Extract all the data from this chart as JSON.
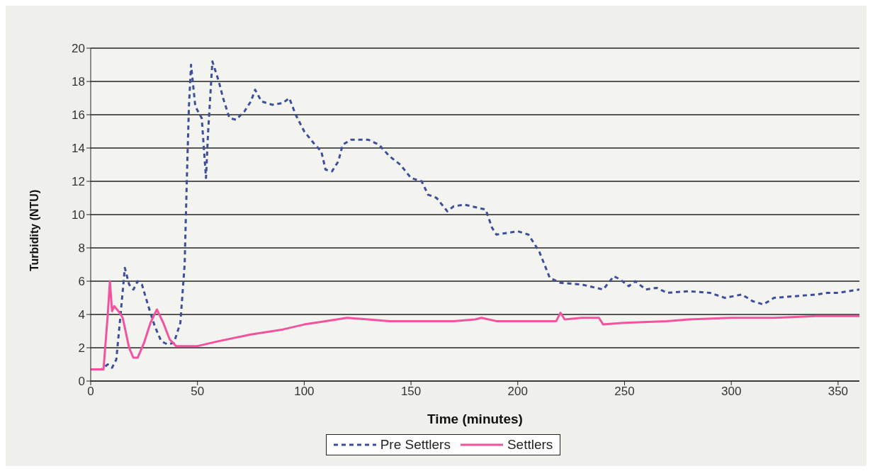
{
  "chart_data": {
    "type": "line",
    "xlabel": "Time (minutes)",
    "ylabel": "Turbidity (NTU)",
    "xlim": [
      0,
      360
    ],
    "xticks": [
      0,
      50,
      100,
      150,
      200,
      250,
      300,
      350
    ],
    "ylim": [
      0,
      20
    ],
    "yticks": [
      0,
      2,
      4,
      6,
      8,
      10,
      12,
      14,
      16,
      18,
      20
    ],
    "grid": "y",
    "legend": "bottom",
    "marker": "none",
    "series": [
      {
        "name": "Pre Settlers",
        "color": "#3d4f9a",
        "line_style": "dashed",
        "x": [
          0,
          5,
          8,
          10,
          12,
          14,
          16,
          18,
          20,
          22,
          24,
          27,
          30,
          33,
          36,
          39,
          42,
          44,
          45,
          46,
          47,
          49,
          52,
          54,
          55,
          57,
          60,
          62,
          65,
          68,
          72,
          75,
          77,
          80,
          85,
          90,
          93,
          96,
          100,
          105,
          108,
          110,
          113,
          116,
          118,
          122,
          130,
          135,
          140,
          145,
          150,
          155,
          158,
          162,
          167,
          170,
          175,
          185,
          188,
          190,
          200,
          205,
          210,
          215,
          220,
          230,
          240,
          245,
          248,
          252,
          255,
          260,
          265,
          270,
          280,
          290,
          297,
          305,
          310,
          315,
          320,
          330,
          340,
          345,
          350,
          360
        ],
        "values": [
          0.7,
          0.7,
          1.0,
          0.8,
          1.3,
          4,
          6.8,
          5.8,
          5.5,
          6.0,
          5.8,
          4.5,
          3.3,
          2.4,
          2.2,
          2.3,
          3.5,
          7,
          12,
          16.5,
          19,
          16.5,
          15.8,
          12.2,
          15,
          19.2,
          18,
          17,
          15.8,
          15.7,
          16.2,
          16.8,
          17.5,
          16.8,
          16.6,
          16.7,
          17,
          16,
          15,
          14.2,
          13.8,
          12.7,
          12.6,
          13.2,
          14.2,
          14.5,
          14.5,
          14.2,
          13.5,
          13,
          12.2,
          12,
          11.2,
          11.0,
          10.2,
          10.5,
          10.6,
          10.3,
          9.2,
          8.8,
          9,
          8.8,
          7.8,
          6.2,
          5.9,
          5.8,
          5.5,
          6.3,
          6.1,
          5.7,
          6.0,
          5.5,
          5.6,
          5.3,
          5.4,
          5.3,
          5.0,
          5.2,
          4.8,
          4.6,
          5.0,
          5.1,
          5.2,
          5.3,
          5.3,
          5.5
        ]
      },
      {
        "name": "Settlers",
        "color": "#f2529e",
        "line_style": "solid",
        "x": [
          0,
          6,
          8,
          9,
          10,
          11,
          13,
          15,
          18,
          20,
          22,
          25,
          28,
          31,
          34,
          37,
          40,
          50,
          60,
          75,
          90,
          100,
          110,
          120,
          130,
          140,
          150,
          160,
          170,
          180,
          183,
          190,
          200,
          210,
          218,
          220,
          222,
          230,
          238,
          240,
          250,
          270,
          280,
          300,
          320,
          340,
          360
        ],
        "values": [
          0.7,
          0.7,
          4,
          6,
          4.2,
          4.5,
          4.2,
          3.8,
          2,
          1.4,
          1.4,
          2.3,
          3.5,
          4.3,
          3.5,
          2.5,
          2.1,
          2.1,
          2.4,
          2.8,
          3.1,
          3.4,
          3.6,
          3.8,
          3.7,
          3.6,
          3.6,
          3.6,
          3.6,
          3.7,
          3.8,
          3.6,
          3.6,
          3.6,
          3.6,
          4.1,
          3.7,
          3.8,
          3.8,
          3.4,
          3.5,
          3.6,
          3.7,
          3.8,
          3.8,
          3.9,
          3.9
        ]
      }
    ]
  }
}
